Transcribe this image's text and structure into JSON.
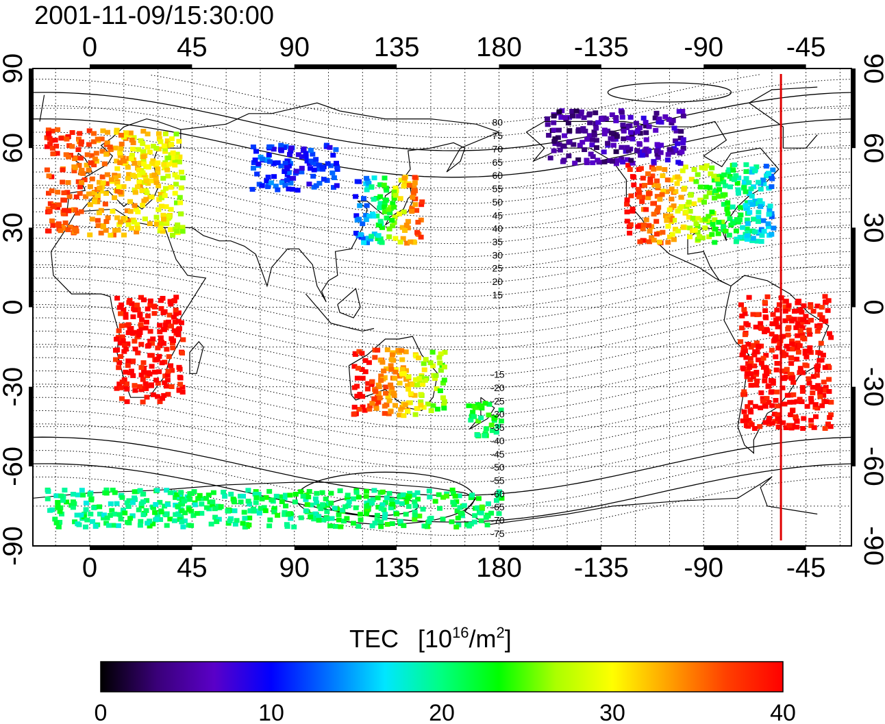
{
  "timestamp": "2001-11-09/15:30:00",
  "colorbar": {
    "title": "TEC",
    "unit_prefix": "[10",
    "unit_exp": "16",
    "unit_mid": "/m",
    "unit_exp2": "2",
    "unit_suffix": "]",
    "ticks": [
      "0",
      "10",
      "20",
      "30",
      "40"
    ],
    "range": [
      0,
      40
    ],
    "colormap": [
      "#000000",
      "#3a007a",
      "#5a00c8",
      "#0000ff",
      "#0070ff",
      "#00e6ff",
      "#00ff80",
      "#00ff00",
      "#aaff00",
      "#ffff00",
      "#ffa000",
      "#ff4000",
      "#ff0000"
    ]
  },
  "top_axis_labels": [
    "0",
    "45",
    "90",
    "135",
    "180",
    "-135",
    "-90",
    "-45"
  ],
  "bottom_axis_labels": [
    "0",
    "45",
    "90",
    "135",
    "180",
    "-135",
    "-90",
    "-45"
  ],
  "left_axis_labels": [
    "90",
    "60",
    "30",
    "0",
    "-30",
    "-60",
    "-90"
  ],
  "right_axis_labels": [
    "90",
    "60",
    "30",
    "0",
    "-30",
    "-60",
    "-90"
  ],
  "mlat_labels_north": [
    "80",
    "75",
    "70",
    "65",
    "60",
    "55",
    "50",
    "45",
    "40",
    "35",
    "30",
    "25",
    "20",
    "15"
  ],
  "mlat_labels_south": [
    "-15",
    "-20",
    "-25",
    "-30",
    "-35",
    "-40",
    "-45",
    "-50",
    "-55",
    "-60",
    "-65",
    "-70",
    "-75"
  ],
  "map": {
    "lon_range": [
      -25,
      335
    ],
    "lat_range": [
      -90,
      90
    ],
    "terminator_lon": -56,
    "terminator_color": "#e00000"
  },
  "tec_regions": [
    {
      "name": "europe",
      "lon": [
        -20,
        40
      ],
      "lat": [
        28,
        68
      ],
      "tec": [
        38,
        28
      ]
    },
    {
      "name": "n-america",
      "lon": [
        -125,
        -60
      ],
      "lat": [
        25,
        55
      ],
      "tec": [
        40,
        14
      ]
    },
    {
      "name": "s-america",
      "lon": [
        -75,
        -35
      ],
      "lat": [
        -45,
        5
      ],
      "tec": [
        40,
        40
      ]
    },
    {
      "name": "east-asia",
      "lon": [
        115,
        145
      ],
      "lat": [
        25,
        50
      ],
      "tec": [
        10,
        38
      ]
    },
    {
      "name": "siberia",
      "lon": [
        70,
        110
      ],
      "lat": [
        45,
        62
      ],
      "tec": [
        12,
        10
      ]
    },
    {
      "name": "arctic-canada",
      "lon": [
        -160,
        -100
      ],
      "lat": [
        55,
        75
      ],
      "tec": [
        4,
        6
      ]
    },
    {
      "name": "australia",
      "lon": [
        115,
        155
      ],
      "lat": [
        -40,
        -15
      ],
      "tec": [
        40,
        25
      ]
    },
    {
      "name": "new-zealand",
      "lon": [
        165,
        180
      ],
      "lat": [
        -48,
        -35
      ],
      "tec": [
        22,
        22
      ]
    },
    {
      "name": "africa",
      "lon": [
        10,
        40
      ],
      "lat": [
        -35,
        5
      ],
      "tec": [
        40,
        40
      ]
    },
    {
      "name": "antarctica",
      "lon": [
        -20,
        180
      ],
      "lat": [
        -82,
        -68
      ],
      "tec": [
        20,
        22
      ]
    }
  ]
}
